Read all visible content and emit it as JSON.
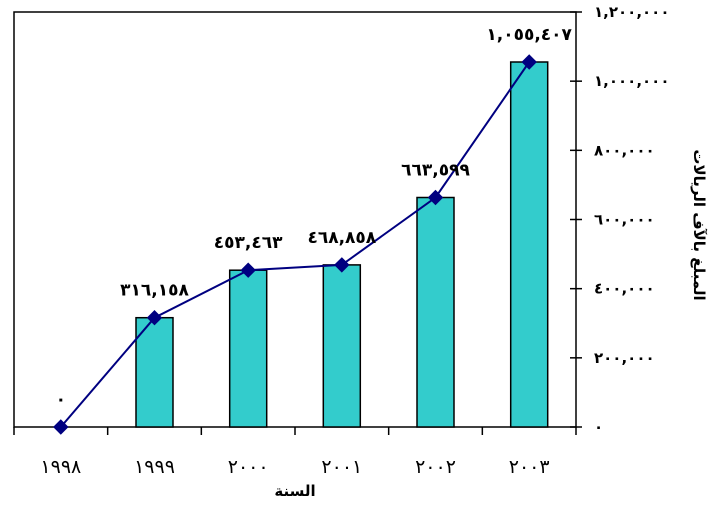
{
  "chart_data": {
    "type": "bar",
    "categories": [
      "١٩٩٨",
      "١٩٩٩",
      "٢٠٠٠",
      "٢٠٠١",
      "٢٠٠٢",
      "٢٠٠٣"
    ],
    "values": [
      0,
      316158,
      453463,
      468858,
      663599,
      1055407
    ],
    "data_labels": [
      "٠",
      "٣١٦,١٥٨",
      "٤٥٣,٤٦٣",
      "٤٦٨,٨٥٨",
      "٦٦٣,٥٩٩",
      "١,٠٥٥,٤٠٧"
    ],
    "overlay_line": true,
    "title": "",
    "xlabel": "السنة",
    "ylabel": "المبلغ بالآف الريالات",
    "y_axis_side": "right",
    "ylim": [
      0,
      1200000
    ],
    "yticks": [
      0,
      200000,
      400000,
      600000,
      800000,
      1000000,
      1200000
    ],
    "ytick_labels": [
      "٠",
      "٢٠٠,٠٠٠",
      "٤٠٠,٠٠٠",
      "٦٠٠,٠٠٠",
      "٨٠٠,٠٠٠",
      "١,٠٠٠,٠٠٠",
      "١,٢٠٠,٠٠٠"
    ],
    "grid": false,
    "legend": "none",
    "colors": {
      "bar": "#33cccc",
      "line": "#000080",
      "marker": "#000080",
      "axis": "#000000"
    }
  }
}
